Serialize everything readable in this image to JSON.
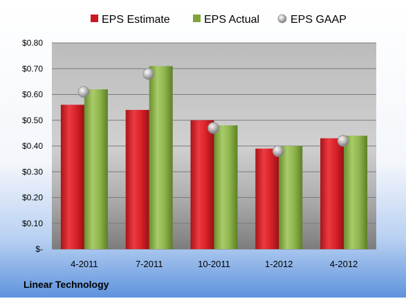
{
  "chart_data": {
    "type": "bar",
    "categories": [
      "4-2011",
      "7-2011",
      "10-2011",
      "1-2012",
      "4-2012"
    ],
    "series": [
      {
        "name": "EPS Estimate",
        "kind": "bar",
        "color": "#c81a1f",
        "values": [
          0.56,
          0.54,
          0.5,
          0.39,
          0.43
        ]
      },
      {
        "name": "EPS Actual",
        "kind": "bar",
        "color": "#7fa33a",
        "values": [
          0.62,
          0.71,
          0.48,
          0.4,
          0.44
        ]
      },
      {
        "name": "EPS GAAP",
        "kind": "scatter",
        "color": "#a9a9a9",
        "values": [
          0.61,
          0.68,
          0.47,
          0.38,
          0.42
        ]
      }
    ],
    "ylim": [
      0,
      0.8
    ],
    "yticks": [
      0,
      0.1,
      0.2,
      0.3,
      0.4,
      0.5,
      0.6,
      0.7,
      0.8
    ],
    "ytick_labels": [
      "$-",
      "$0.10",
      "$0.20",
      "$0.30",
      "$0.40",
      "$0.50",
      "$0.60",
      "$0.70",
      "$0.80"
    ],
    "grid": true,
    "legend_position": "top",
    "company": "Linear Technology"
  }
}
